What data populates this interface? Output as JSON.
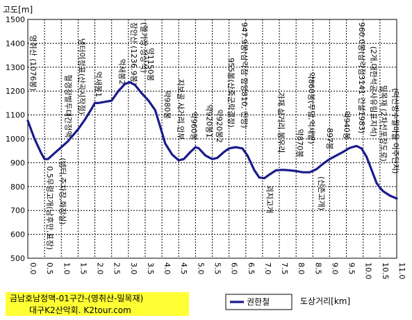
{
  "chart_data": {
    "type": "line",
    "ylabel": "고도[m]",
    "xlabel": "도상거리[km]",
    "title_lines": [
      "금남호남정맥-01구간-(영취산-밀목재)",
      "대구K2산악회. K2tour.com"
    ],
    "xlim": [
      0,
      11
    ],
    "ylim": [
      500,
      1500
    ],
    "x_ticks": [
      "0.0",
      "0.5",
      "1.0",
      "1.5",
      "2.0",
      "2.5",
      "3.0",
      "3.5",
      "4.0",
      "4.5",
      "5.0",
      "5.5",
      "6.0",
      "6.5",
      "7.0",
      "7.5",
      "8.0",
      "8.5",
      "9.0",
      "9.5",
      "10.0",
      "10.5",
      "11.0"
    ],
    "y_ticks": [
      "1500",
      "1400",
      "1300",
      "1200",
      "1100",
      "1000",
      "900",
      "800",
      "700",
      "600",
      "500"
    ],
    "grid": true,
    "legend_position": "bottom-center",
    "series": [
      {
        "name": "권한철",
        "color": "#1a1a8c",
        "x": [
          0.0,
          0.2,
          0.4,
          0.5,
          0.6,
          0.8,
          1.0,
          1.2,
          1.5,
          1.7,
          1.9,
          2.0,
          2.1,
          2.3,
          2.5,
          2.7,
          2.9,
          3.05,
          3.2,
          3.4,
          3.6,
          3.8,
          3.95,
          4.1,
          4.3,
          4.5,
          4.65,
          4.85,
          5.0,
          5.1,
          5.3,
          5.5,
          5.65,
          5.85,
          6.0,
          6.2,
          6.4,
          6.55,
          6.75,
          6.9,
          7.05,
          7.2,
          7.4,
          7.6,
          7.8,
          8.0,
          8.2,
          8.4,
          8.6,
          8.8,
          9.0,
          9.2,
          9.4,
          9.6,
          9.8,
          9.95,
          10.1,
          10.25,
          10.4,
          10.5,
          10.6,
          10.8,
          11.0
        ],
        "y": [
          1076,
          1000,
          940,
          915,
          915,
          940,
          965,
          990,
          1040,
          1080,
          1125,
          1150,
          1150,
          1155,
          1160,
          1200,
          1230,
          1237,
          1225,
          1190,
          1160,
          1120,
          1050,
          980,
          935,
          910,
          915,
          945,
          965,
          960,
          930,
          915,
          920,
          945,
          960,
          965,
          960,
          930,
          870,
          838,
          835,
          850,
          868,
          870,
          868,
          865,
          860,
          860,
          872,
          895,
          915,
          930,
          945,
          962,
          970,
          960,
          925,
          870,
          815,
          795,
          780,
          762,
          750
        ]
      }
    ],
    "annotations": [
      {
        "text": "영취산 (1076봉)",
        "x": 0.0,
        "anchor": "top"
      },
      {
        "text": "0.5무령고개(남후만,표장)",
        "x": 0.5,
        "anchor": "bottom"
      },
      {
        "text": "(넴터,주차장,화장실)",
        "x": 0.88,
        "anchor": "bottom"
      },
      {
        "text": "혈갱장벌두대간정맥",
        "x": 1.05,
        "anchor": "top"
      },
      {
        "text": "냉터이정표(산곡시작점)",
        "x": 1.45,
        "anchor": "top"
      },
      {
        "text": "억새봉1",
        "x": 1.95,
        "anchor": "top"
      },
      {
        "text": "억새봉2",
        "x": 2.65,
        "anchor": "top"
      },
      {
        "text": "장안산 (1236.9봉)",
        "x": 3.0,
        "anchor": "top"
      },
      {
        "text": "(헬기장,정상석)",
        "x": 3.3,
        "anchor": "top"
      },
      {
        "text": "약1150봉",
        "x": 3.5,
        "anchor": "top"
      },
      {
        "text": "약980봉",
        "x": 4.0,
        "anchor": "top"
      },
      {
        "text": "지보골 사거리 안부",
        "x": 4.4,
        "anchor": "top"
      },
      {
        "text": "약960봉",
        "x": 4.8,
        "anchor": "top"
      },
      {
        "text": "약920봉1",
        "x": 5.25,
        "anchor": "top"
      },
      {
        "text": "약920봉2",
        "x": 5.55,
        "anchor": "top"
      },
      {
        "text": "955봉(산죽군락결정)",
        "x": 5.9,
        "anchor": "top"
      },
      {
        "text": "947.9봉(삼각점 함양810, 전망)",
        "x": 6.3,
        "anchor": "top"
      },
      {
        "text": "괴지고개",
        "x": 7.05,
        "anchor": "bottom"
      },
      {
        "text": "가재 삼거리 봉우리",
        "x": 7.4,
        "anchor": "top"
      },
      {
        "text": "약870봉",
        "x": 7.95,
        "anchor": "top"
      },
      {
        "text": "약860봉(무덤,억새밭)",
        "x": 8.3,
        "anchor": "top"
      },
      {
        "text": "(신촌고개)",
        "x": 8.6,
        "anchor": "bottom"
      },
      {
        "text": "897봉",
        "x": 8.85,
        "anchor": "top"
      },
      {
        "text": "약940봉",
        "x": 9.35,
        "anchor": "top"
      },
      {
        "text": "960.0봉(삼각점3141 건설1983)",
        "x": 9.8,
        "anchor": "top"
      },
      {
        "text": "(2개,대한석공사유림표지석)",
        "x": 10.15,
        "anchor": "top"
      },
      {
        "text": "밀목재 (2차선포장도로)",
        "x": 10.45,
        "anchor": "top"
      },
      {
        "text": "(덕산방수월마을 이주단지)",
        "x": 10.8,
        "anchor": "top"
      }
    ]
  }
}
